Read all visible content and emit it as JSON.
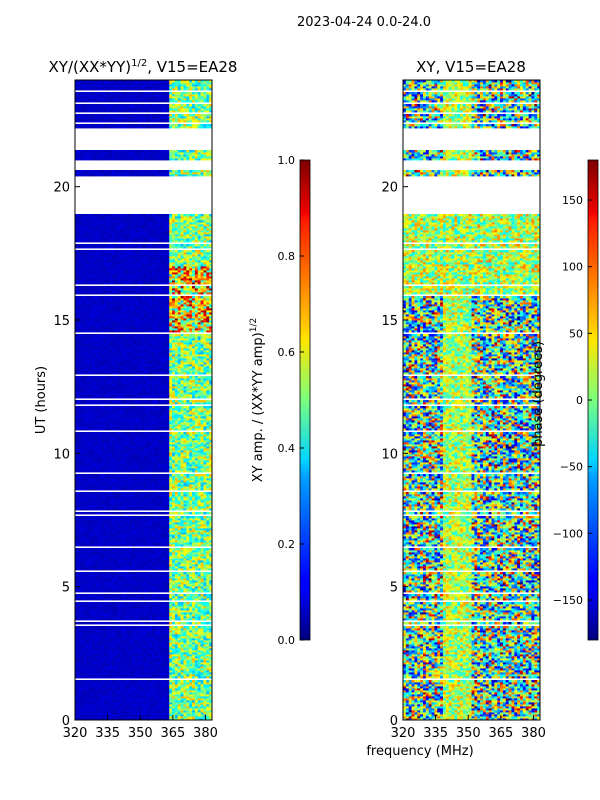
{
  "figure": {
    "suptitle": "2023-04-24 0.0-24.0",
    "xlabel": "frequency (MHz)"
  },
  "chart_data": [
    {
      "type": "heatmap",
      "title_main": "XY/(XX*YY)",
      "title_sup": "1/2",
      "title_rest": ", V15=EA28",
      "ylabel": "UT (hours)",
      "xlim": [
        320,
        383
      ],
      "ylim": [
        0,
        24
      ],
      "xticks": [
        320,
        335,
        350,
        365,
        380
      ],
      "yticks": [
        0,
        5,
        10,
        15,
        20
      ],
      "blank_rows_hours": [
        [
          19.0,
          20.4
        ],
        [
          20.6,
          21.0
        ],
        [
          21.4,
          22.2
        ]
      ],
      "active_band_MHz": [
        363,
        383
      ],
      "colormap": "jet",
      "value_range": [
        0.0,
        1.0
      ],
      "colorbar": {
        "label_main": "XY amp. / (XX*YY amp)",
        "label_sup": "1/2",
        "ticks": [
          "0.0",
          "0.2",
          "0.4",
          "0.6",
          "0.8",
          "1.0"
        ]
      }
    },
    {
      "type": "heatmap",
      "title": "XY, V15=EA28",
      "xlim": [
        320,
        383
      ],
      "ylim": [
        0,
        24
      ],
      "xticks": [
        320,
        335,
        350,
        365,
        380
      ],
      "yticks": [
        0,
        5,
        10,
        15,
        20
      ],
      "blank_rows_hours": [
        [
          19.0,
          20.4
        ],
        [
          20.6,
          21.0
        ],
        [
          21.4,
          22.2
        ]
      ],
      "colormap": "jet",
      "value_range": [
        -180,
        180
      ],
      "colorbar": {
        "label": "phase (degrees)",
        "ticks": [
          "−150",
          "−100",
          "−50",
          "0",
          "50",
          "100",
          "150"
        ],
        "tick_values": [
          -150,
          -100,
          -50,
          0,
          50,
          100,
          150
        ]
      }
    }
  ]
}
